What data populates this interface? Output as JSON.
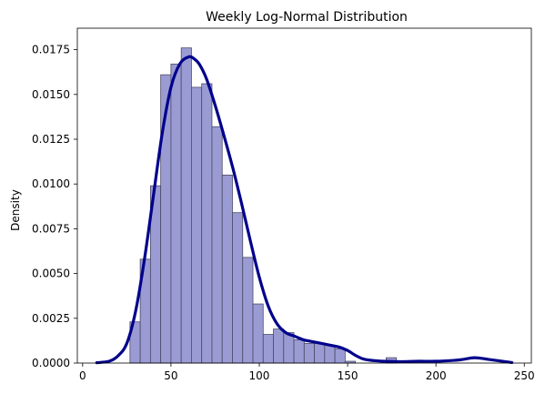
{
  "chart_data": {
    "type": "bar",
    "title": "Weekly Log-Normal Distribution",
    "xlabel": "",
    "ylabel": "Density",
    "xlim": [
      -3,
      254
    ],
    "ylim": [
      0,
      0.0187
    ],
    "x_ticks": [
      0,
      50,
      100,
      150,
      200,
      250
    ],
    "y_ticks": [
      0.0,
      0.0025,
      0.005,
      0.0075,
      0.01,
      0.0125,
      0.015,
      0.0175
    ],
    "y_tick_labels": [
      "0.0000",
      "0.0025",
      "0.0050",
      "0.0075",
      "0.0100",
      "0.0125",
      "0.0150",
      "0.0175"
    ],
    "grid": false,
    "bars": {
      "bin_edges": [
        26.8,
        32.6,
        38.4,
        44.2,
        50.0,
        55.8,
        61.6,
        67.4,
        73.2,
        79.0,
        84.8,
        90.6,
        96.4,
        102.2,
        108.0,
        113.8,
        119.6,
        125.4,
        131.2,
        137.0,
        142.8,
        148.6,
        154.4,
        160.2,
        166.0,
        171.8,
        177.6
      ],
      "values": [
        0.0023,
        0.0058,
        0.0099,
        0.0161,
        0.0167,
        0.0176,
        0.0154,
        0.0156,
        0.0132,
        0.0105,
        0.0084,
        0.0059,
        0.0033,
        0.0016,
        0.0019,
        0.0017,
        0.0013,
        0.0011,
        0.0011,
        0.001,
        0.0008,
        0.0001,
        0.0,
        0.0,
        0.0,
        0.0003
      ]
    },
    "kde": {
      "x": [
        8,
        15,
        20,
        25,
        30,
        35,
        40,
        45,
        50,
        55,
        60,
        63,
        66,
        70,
        75,
        80,
        85,
        90,
        95,
        100,
        105,
        110,
        115,
        120,
        125,
        130,
        135,
        140,
        145,
        150,
        155,
        160,
        170,
        180,
        190,
        200,
        210,
        215,
        222,
        230,
        243
      ],
      "y": [
        2e-05,
        0.0001,
        0.0004,
        0.0011,
        0.0029,
        0.0058,
        0.0093,
        0.0128,
        0.0154,
        0.0167,
        0.0171,
        0.017,
        0.0167,
        0.0159,
        0.0144,
        0.0127,
        0.0109,
        0.0089,
        0.0068,
        0.0048,
        0.0032,
        0.0022,
        0.0017,
        0.0015,
        0.0013,
        0.0012,
        0.0011,
        0.001,
        0.0009,
        0.0007,
        0.0004,
        0.0002,
        0.0001,
        8e-05,
        0.0001,
        0.0001,
        0.00015,
        0.0002,
        0.0003,
        0.0002,
        3e-05
      ]
    },
    "colors": {
      "bar_fill": "#9b9bd4",
      "bar_edge": "#4a4a66",
      "kde_line": "#00008b",
      "axis": "#000000",
      "background": "#ffffff"
    }
  }
}
